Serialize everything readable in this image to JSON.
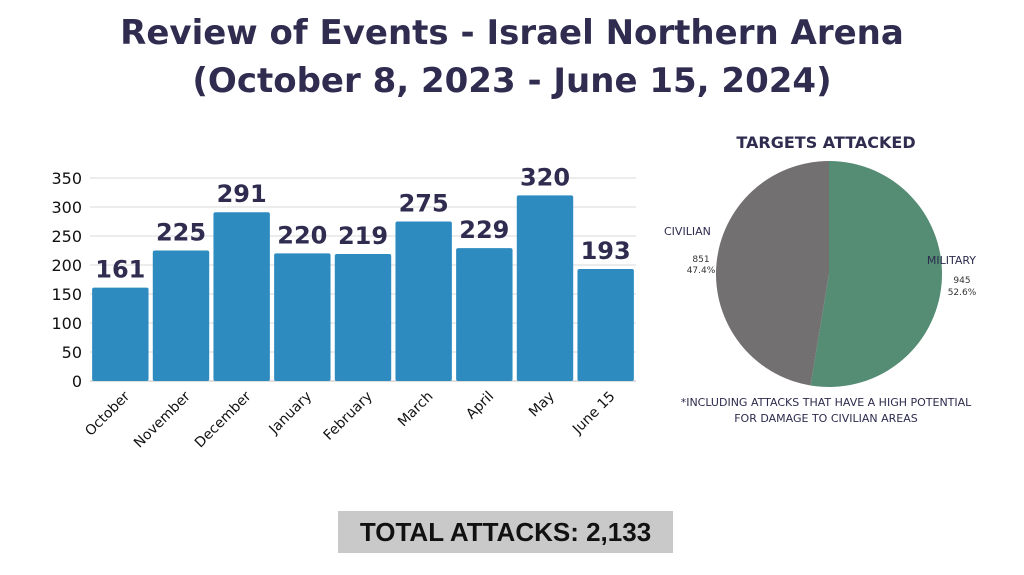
{
  "title_line1": "Review of Events - Israel Northern Arena",
  "title_line2": "(October 8, 2023 - June 15, 2024)",
  "total": "TOTAL ATTACKS: 2,133",
  "colors": {
    "bar": "#2e8bc0",
    "military": "#548c74",
    "civilian": "#737071",
    "title": "#2f2c50"
  },
  "chart_data": [
    {
      "type": "bar",
      "title": "",
      "xlabel": "",
      "ylabel": "",
      "categories": [
        "October",
        "November",
        "December",
        "January",
        "February",
        "March",
        "April",
        "May",
        "June 15"
      ],
      "values": [
        161,
        225,
        291,
        220,
        219,
        275,
        229,
        320,
        193
      ],
      "ylim": [
        0,
        350
      ],
      "yticks": [
        0,
        50,
        100,
        150,
        200,
        250,
        300,
        350
      ],
      "grid": true
    },
    {
      "type": "pie",
      "title": "TARGETS ATTACKED",
      "slices": [
        {
          "label": "MILITARY",
          "value": 945,
          "percent": "52.6%"
        },
        {
          "label": "CIVILIAN",
          "value": 851,
          "percent": "47.4%"
        }
      ],
      "note_line1": "*INCLUDING ATTACKS THAT HAVE A HIGH POTENTIAL",
      "note_line2": "FOR DAMAGE TO CIVILIAN AREAS"
    }
  ]
}
